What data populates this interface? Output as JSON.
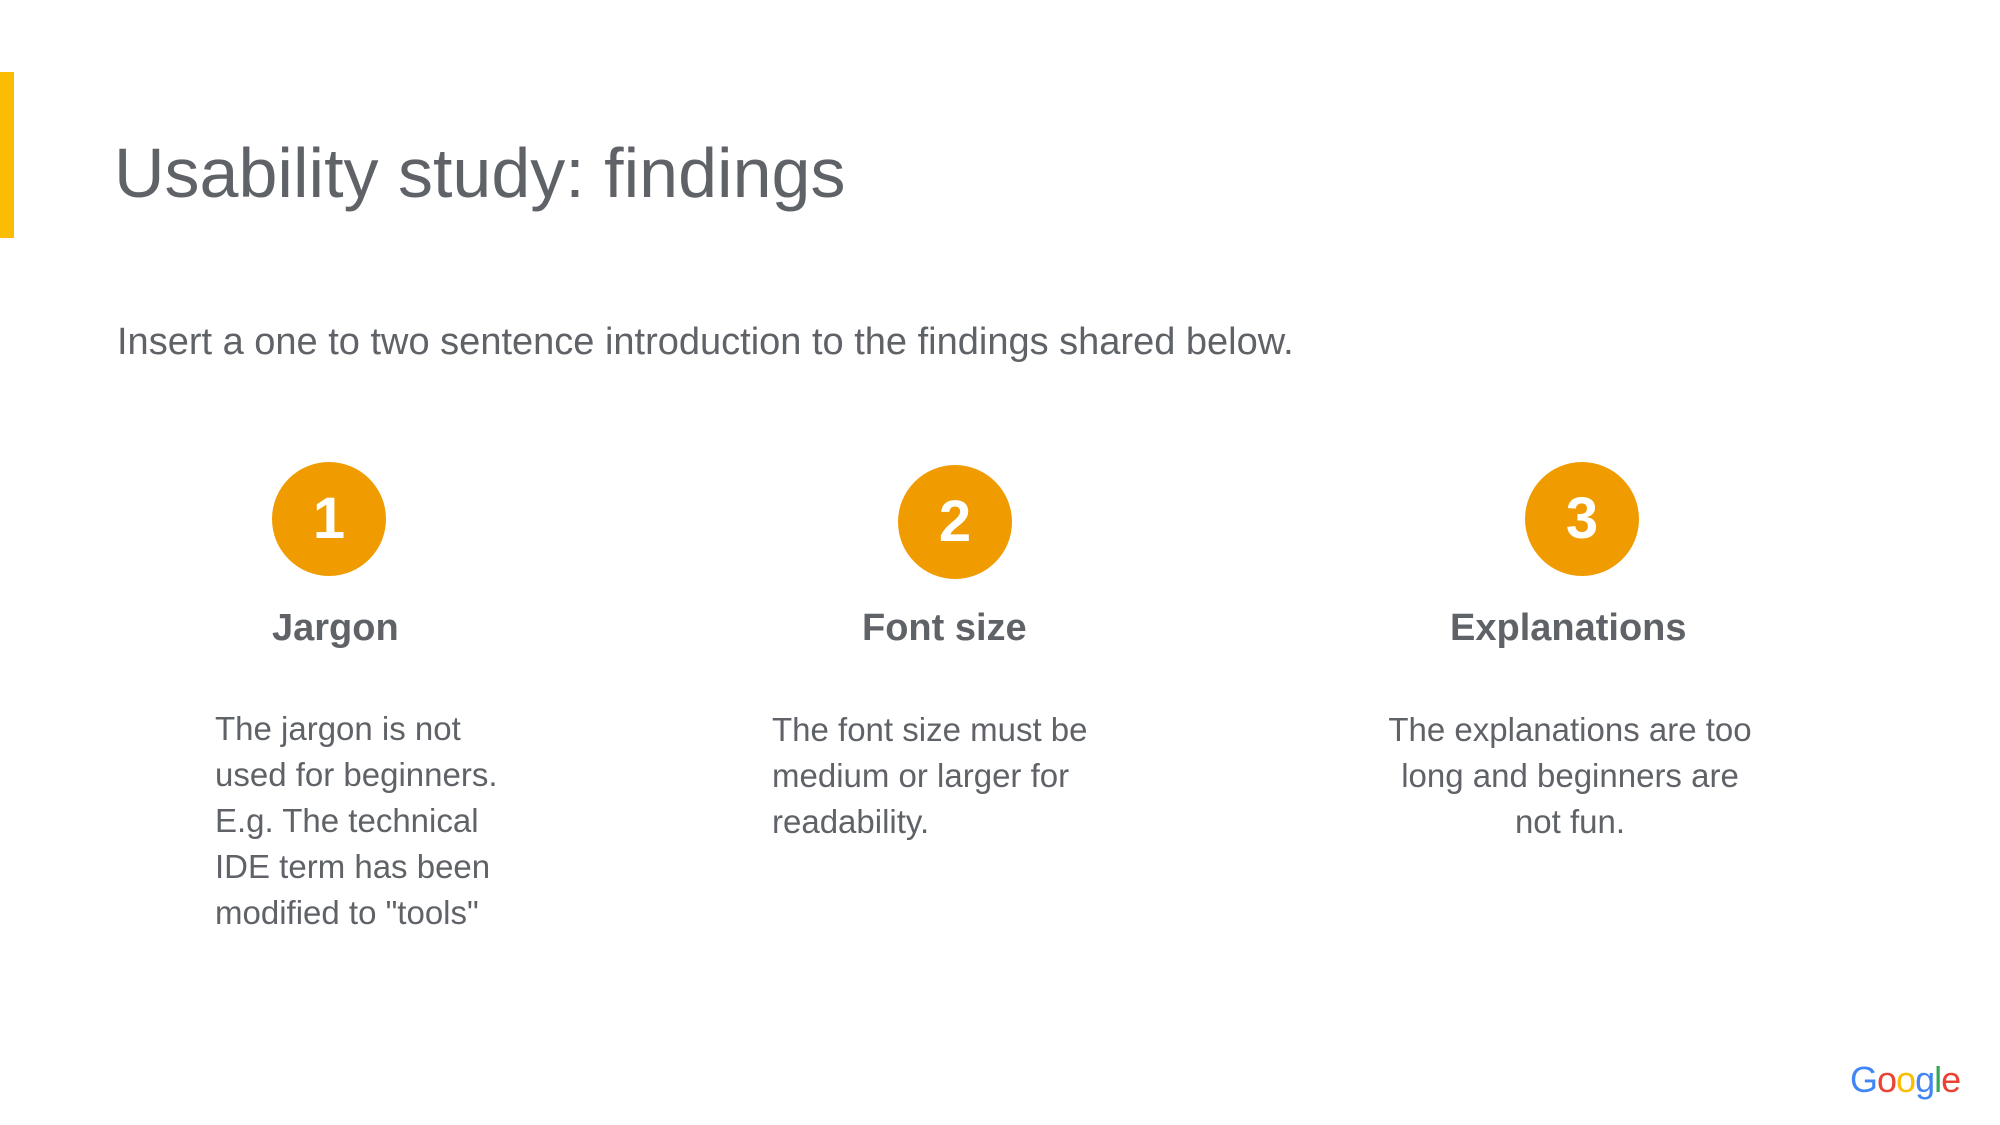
{
  "slide": {
    "title": "Usability study: findings",
    "intro": "Insert a one to two sentence introduction to the findings shared below."
  },
  "findings": [
    {
      "number": "1",
      "heading": "Jargon",
      "lines": [
        "The jargon is not",
        "used for beginners.",
        "E.g. The technical",
        "IDE term has been",
        "modified to \"tools\""
      ]
    },
    {
      "number": "2",
      "heading": "Font size",
      "lines": [
        "The font size must be",
        "medium or larger for",
        "readability."
      ]
    },
    {
      "number": "3",
      "heading": "Explanations",
      "lines": [
        "The explanations are too",
        "long and beginners are",
        "not fun."
      ]
    }
  ],
  "logo": {
    "letters": [
      "G",
      "o",
      "o",
      "g",
      "l",
      "e"
    ],
    "colors": [
      "#4285f4",
      "#ea4335",
      "#fbbc04",
      "#4285f4",
      "#34a853",
      "#ea4335"
    ]
  },
  "colors": {
    "accent_bar": "#fbbc04",
    "circle": "#f09b00",
    "text": "#5f6368"
  }
}
